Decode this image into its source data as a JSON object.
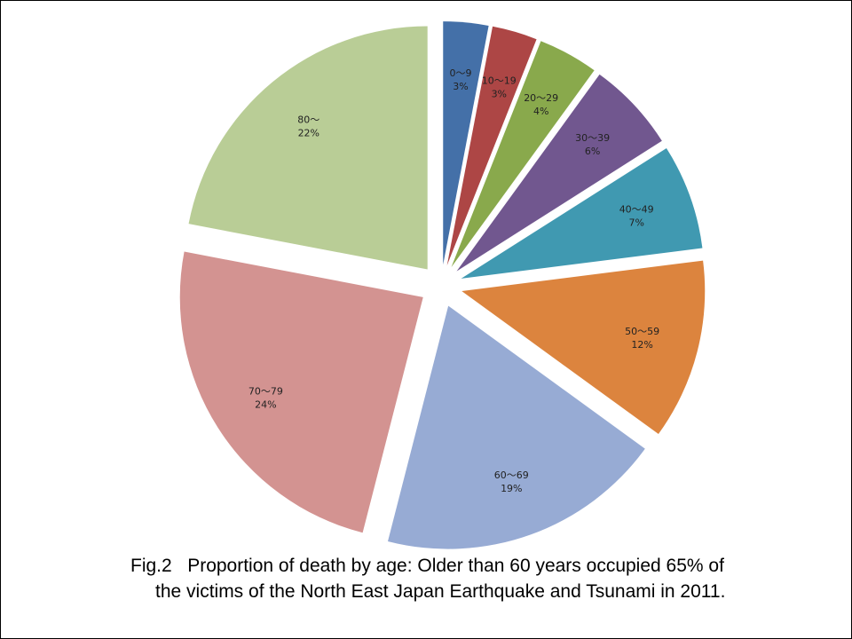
{
  "chart_data": {
    "type": "pie",
    "title": "",
    "slices": [
      {
        "label": "0～9",
        "value": 3,
        "display": "3%",
        "color": "#4470a8"
      },
      {
        "label": "10～19",
        "value": 3,
        "display": "3%",
        "color": "#ad4645"
      },
      {
        "label": "20～29",
        "value": 4,
        "display": "4%",
        "color": "#89a94c"
      },
      {
        "label": "30～39",
        "value": 6,
        "display": "6%",
        "color": "#71578f"
      },
      {
        "label": "40～49",
        "value": 7,
        "display": "7%",
        "color": "#4099b1"
      },
      {
        "label": "50～59",
        "value": 12,
        "display": "12%",
        "color": "#dc843e"
      },
      {
        "label": "60～69",
        "value": 19,
        "display": "19%",
        "color": "#97abd4"
      },
      {
        "label": "70～79",
        "value": 24,
        "display": "24%",
        "color": "#d39391"
      },
      {
        "label": "80～",
        "value": 22,
        "display": "22%",
        "color": "#b9cd96"
      }
    ],
    "exploded": true,
    "legend": "none"
  },
  "caption": {
    "line1": "Fig.2   Proportion of death by age: Older than 60 years occupied 65% of",
    "line2": "the victims of the North East Japan Earthquake and Tsunami in 2011."
  }
}
